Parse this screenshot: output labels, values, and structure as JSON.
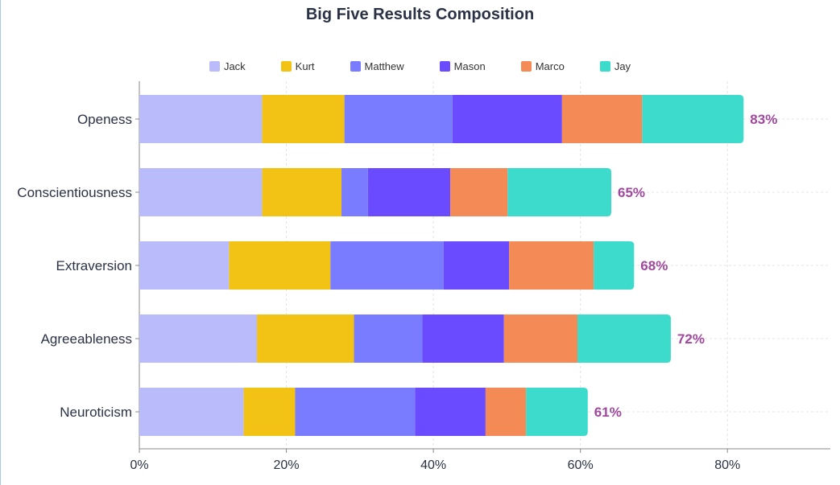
{
  "chart_data": {
    "type": "bar",
    "orientation": "horizontal",
    "stacked": true,
    "title": "Big Five Results Composition",
    "categories": [
      "Openess",
      "Conscientiousness",
      "Extraversion",
      "Agreeableness",
      "Neuroticism"
    ],
    "series": [
      {
        "name": "Jack",
        "color": "#b9bbfb",
        "values": [
          16.7,
          16.7,
          12.2,
          16.0,
          14.2
        ]
      },
      {
        "name": "Kurt",
        "color": "#f2c314",
        "values": [
          11.2,
          10.8,
          13.8,
          13.2,
          7.0
        ]
      },
      {
        "name": "Matthew",
        "color": "#7a7cff",
        "values": [
          14.7,
          3.6,
          15.4,
          9.3,
          16.3
        ]
      },
      {
        "name": "Mason",
        "color": "#6a4bff",
        "values": [
          14.9,
          11.2,
          8.9,
          11.1,
          9.6
        ]
      },
      {
        "name": "Marco",
        "color": "#f48b56",
        "values": [
          10.9,
          7.8,
          11.5,
          10.0,
          5.5
        ]
      },
      {
        "name": "Jay",
        "color": "#3cdbcb",
        "values": [
          13.8,
          14.1,
          5.5,
          12.7,
          8.4
        ]
      }
    ],
    "totals": [
      "83%",
      "65%",
      "68%",
      "72%",
      "61%"
    ],
    "total_label_color": "#a0479e",
    "xlim": [
      0,
      94
    ],
    "xticks": [
      0,
      20,
      40,
      60,
      80
    ],
    "xtick_labels": [
      "0%",
      "20%",
      "40%",
      "60%",
      "80%"
    ],
    "grid": true,
    "legend_position": "top"
  }
}
